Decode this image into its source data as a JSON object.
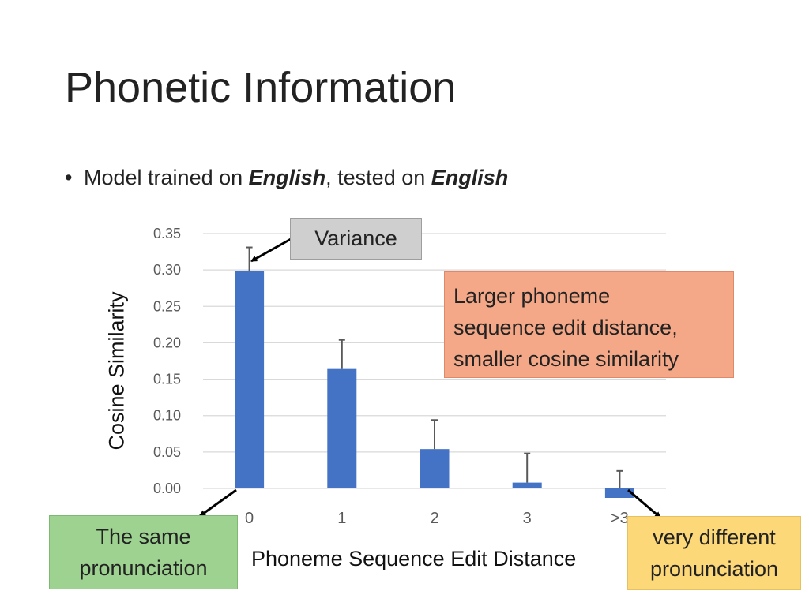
{
  "slide": {
    "title": "Phonetic Information",
    "bullet": {
      "prefix": "Model trained on ",
      "train_lang": "English",
      "middle": ", tested on ",
      "test_lang": "English"
    }
  },
  "callouts": {
    "variance": "Variance",
    "larger": [
      "Larger phoneme",
      "sequence edit distance,",
      "smaller cosine similarity"
    ],
    "same": [
      "The same",
      "pronunciation"
    ],
    "different": [
      "very different",
      "pronunciation"
    ]
  },
  "colors": {
    "bar": "#4472c4",
    "error_bar": "#595959",
    "grid": "#d9d9d9",
    "arrow": "#000000"
  },
  "chart_data": {
    "type": "bar",
    "categories": [
      "0",
      "1",
      "2",
      "3",
      ">3"
    ],
    "values": [
      0.298,
      0.164,
      0.054,
      0.008,
      -0.013
    ],
    "error_upper": [
      0.331,
      0.204,
      0.094,
      0.048,
      0.024
    ],
    "ylabel": "Cosine Similarity",
    "xlabel": "Phoneme Sequence Edit Distance",
    "ylim": [
      0,
      0.35
    ],
    "yticks": [
      "0.00",
      "0.05",
      "0.10",
      "0.15",
      "0.20",
      "0.25",
      "0.30",
      "0.35"
    ],
    "grid": true
  }
}
